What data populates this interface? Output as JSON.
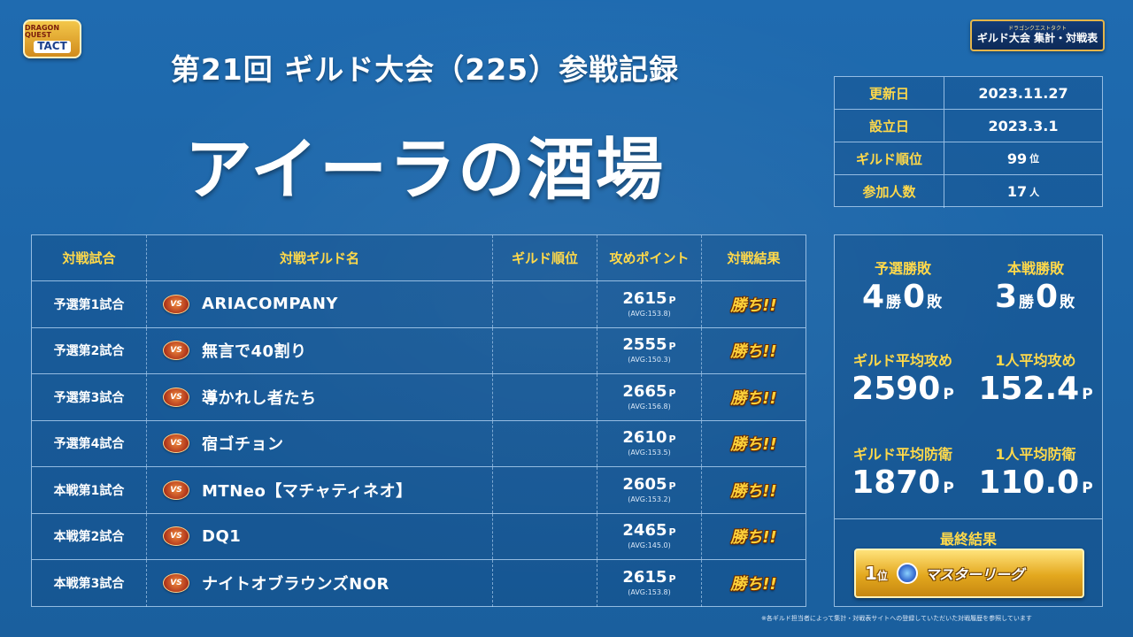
{
  "logos": {
    "left_top": "DRAGON QUEST",
    "left_main": "TACT",
    "right_top": "ドラゴンクエストタクト",
    "right_main": "ギルド大会 集計・対戦表"
  },
  "subtitle": "第21回 ギルド大会（225）参戦記録",
  "guild_name": "アイーラの酒場",
  "info": [
    {
      "label": "更新日",
      "value": "2023.11.27",
      "unit": ""
    },
    {
      "label": "設立日",
      "value": "2023.3.1",
      "unit": ""
    },
    {
      "label": "ギルド順位",
      "value": "99",
      "unit": "位"
    },
    {
      "label": "参加人数",
      "value": "17",
      "unit": "人"
    }
  ],
  "table": {
    "headers": [
      "対戦試合",
      "対戦ギルド名",
      "ギルド順位",
      "攻めポイント",
      "対戦結果"
    ],
    "vs_label": "VS",
    "point_unit": "P",
    "result_label": "勝ち!!",
    "rows": [
      {
        "match": "予選第1試合",
        "opponent": "ARIACOMPANY",
        "rank": "",
        "points": "2615",
        "avg": "(AVG:153.8)"
      },
      {
        "match": "予選第2試合",
        "opponent": "無言で40割り",
        "rank": "",
        "points": "2555",
        "avg": "(AVG:150.3)"
      },
      {
        "match": "予選第3試合",
        "opponent": "導かれし者たち",
        "rank": "",
        "points": "2665",
        "avg": "(AVG:156.8)"
      },
      {
        "match": "予選第4試合",
        "opponent": "宿ゴチョン",
        "rank": "",
        "points": "2610",
        "avg": "(AVG:153.5)"
      },
      {
        "match": "本戦第1試合",
        "opponent": "MTNeo【マチャティネオ】",
        "rank": "",
        "points": "2605",
        "avg": "(AVG:153.2)"
      },
      {
        "match": "本戦第2試合",
        "opponent": "DQ1",
        "rank": "",
        "points": "2465",
        "avg": "(AVG:145.0)"
      },
      {
        "match": "本戦第3試合",
        "opponent": "ナイトオブラウンズNOR",
        "rank": "",
        "points": "2615",
        "avg": "(AVG:153.8)"
      }
    ]
  },
  "stats": {
    "prelim": {
      "label": "予選勝敗",
      "wins": "4",
      "losses": "0",
      "win_unit": "勝",
      "loss_unit": "敗"
    },
    "main": {
      "label": "本戦勝敗",
      "wins": "3",
      "losses": "0",
      "win_unit": "勝",
      "loss_unit": "敗"
    },
    "guild_avg_attack": {
      "label": "ギルド平均攻め",
      "value": "2590",
      "unit": "P"
    },
    "person_avg_attack": {
      "label": "1人平均攻め",
      "value": "152.4",
      "unit": "P"
    },
    "guild_avg_defense": {
      "label": "ギルド平均防衛",
      "value": "1870",
      "unit": "P"
    },
    "person_avg_defense": {
      "label": "1人平均防衛",
      "value": "110.0",
      "unit": "P"
    },
    "final_label": "最終結果",
    "final_rank": "1",
    "final_rank_unit": "位",
    "final_league": "マスターリーグ"
  },
  "footnote": "※各ギルド担当者によって集計・対戦表サイトへの登録していただいた対戦履歴を参照しています"
}
